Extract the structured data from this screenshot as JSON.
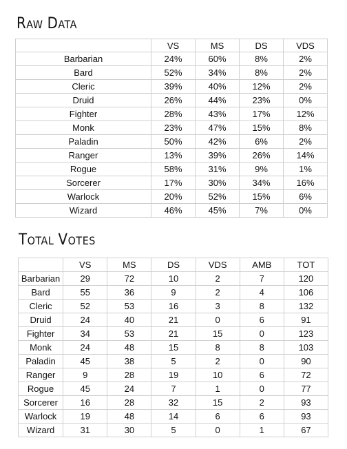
{
  "raw": {
    "title_first": "R",
    "title_rest": "aw",
    "title_second_first": "D",
    "title_second_rest": "ata",
    "columns": [
      "",
      "VS",
      "MS",
      "DS",
      "VDS"
    ],
    "rows": [
      [
        "Barbarian",
        "24%",
        "60%",
        "8%",
        "2%"
      ],
      [
        "Bard",
        "52%",
        "34%",
        "8%",
        "2%"
      ],
      [
        "Cleric",
        "39%",
        "40%",
        "12%",
        "2%"
      ],
      [
        "Druid",
        "26%",
        "44%",
        "23%",
        "0%"
      ],
      [
        "Fighter",
        "28%",
        "43%",
        "17%",
        "12%"
      ],
      [
        "Monk",
        "23%",
        "47%",
        "15%",
        "8%"
      ],
      [
        "Paladin",
        "50%",
        "42%",
        "6%",
        "2%"
      ],
      [
        "Ranger",
        "13%",
        "39%",
        "26%",
        "14%"
      ],
      [
        "Rogue",
        "58%",
        "31%",
        "9%",
        "1%"
      ],
      [
        "Sorcerer",
        "17%",
        "30%",
        "34%",
        "16%"
      ],
      [
        "Warlock",
        "20%",
        "52%",
        "15%",
        "6%"
      ],
      [
        "Wizard",
        "46%",
        "45%",
        "7%",
        "0%"
      ]
    ]
  },
  "total": {
    "title_first": "T",
    "title_rest": "otal",
    "title_second_first": "V",
    "title_second_rest": "otes",
    "columns": [
      "",
      "VS",
      "MS",
      "DS",
      "VDS",
      "AMB",
      "TOT"
    ],
    "rows": [
      [
        "Barbarian",
        "29",
        "72",
        "10",
        "2",
        "7",
        "120"
      ],
      [
        "Bard",
        "55",
        "36",
        "9",
        "2",
        "4",
        "106"
      ],
      [
        "Cleric",
        "52",
        "53",
        "16",
        "3",
        "8",
        "132"
      ],
      [
        "Druid",
        "24",
        "40",
        "21",
        "0",
        "6",
        "91"
      ],
      [
        "Fighter",
        "34",
        "53",
        "21",
        "15",
        "0",
        "123"
      ],
      [
        "Monk",
        "24",
        "48",
        "15",
        "8",
        "8",
        "103"
      ],
      [
        "Paladin",
        "45",
        "38",
        "5",
        "2",
        "0",
        "90"
      ],
      [
        "Ranger",
        "9",
        "28",
        "19",
        "10",
        "6",
        "72"
      ],
      [
        "Rogue",
        "45",
        "24",
        "7",
        "1",
        "0",
        "77"
      ],
      [
        "Sorcerer",
        "16",
        "28",
        "32",
        "15",
        "2",
        "93"
      ],
      [
        "Warlock",
        "19",
        "48",
        "14",
        "6",
        "6",
        "93"
      ],
      [
        "Wizard",
        "31",
        "30",
        "5",
        "0",
        "1",
        "67"
      ]
    ]
  }
}
